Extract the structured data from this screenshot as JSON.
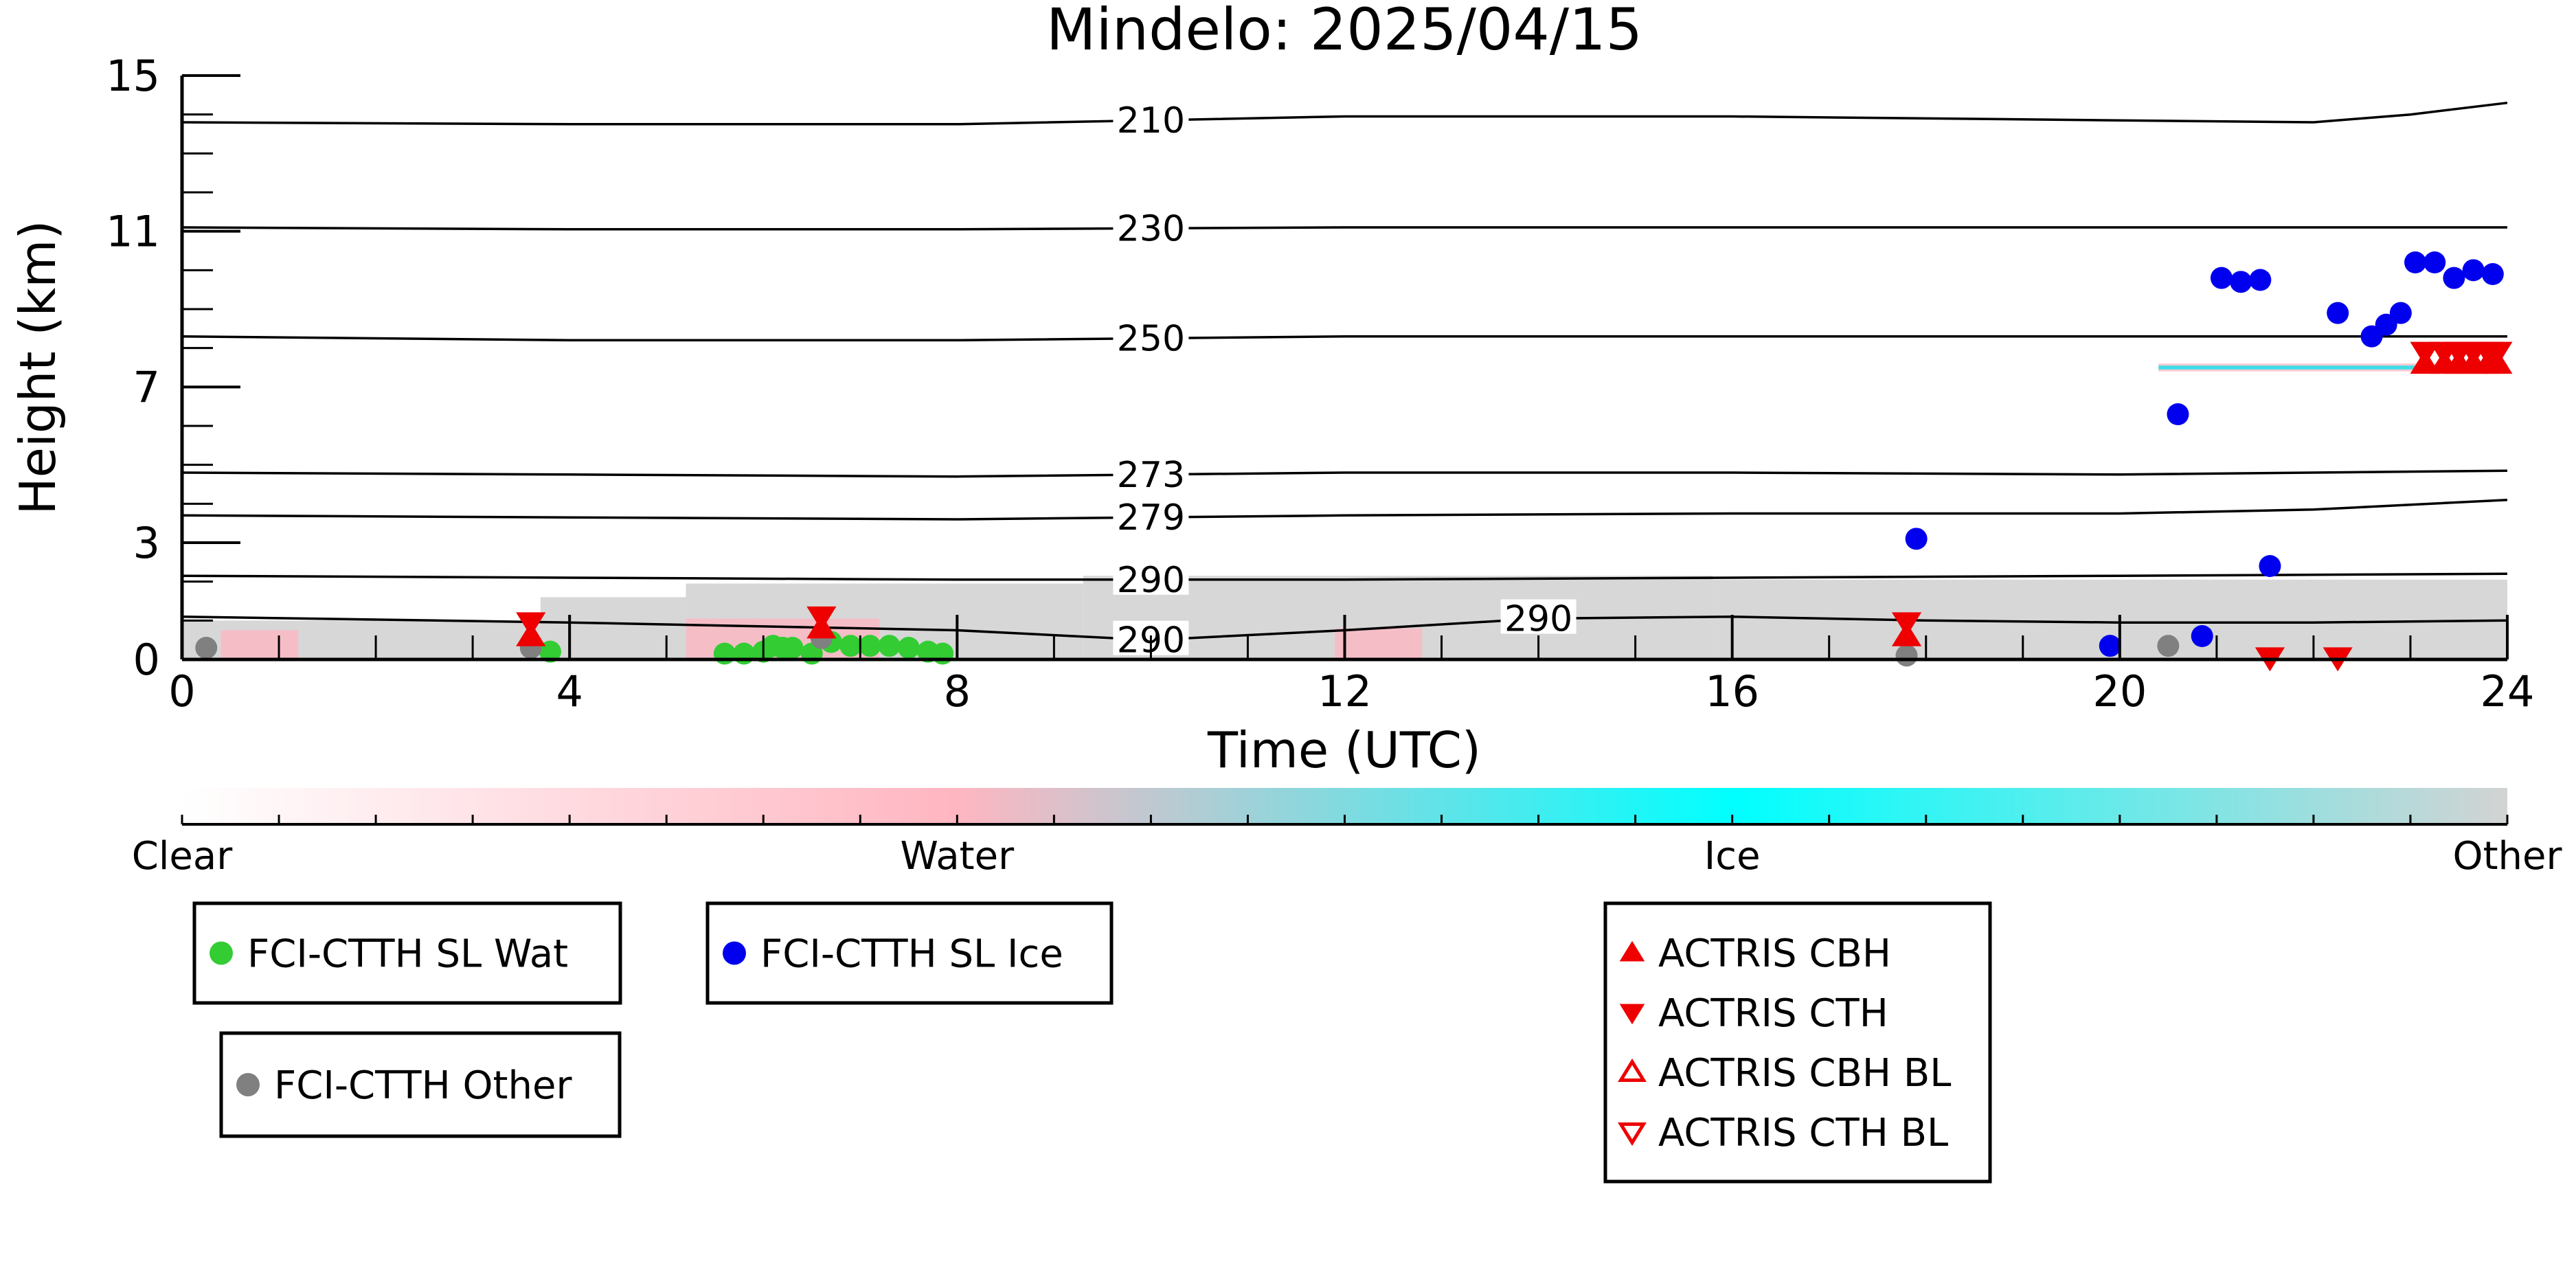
{
  "chart_data": {
    "type": "scatter",
    "title": "Mindelo: 2025/04/15",
    "xlabel": "Time (UTC)",
    "ylabel": "Height (km)",
    "xlim": [
      0,
      24
    ],
    "ylim": [
      0,
      15
    ],
    "xticks": [
      0,
      4,
      8,
      12,
      16,
      20,
      24
    ],
    "yticks": [
      0,
      3,
      7,
      11,
      15
    ],
    "temperature_contours": [
      {
        "label": "210",
        "x": [
          0,
          4,
          8,
          12,
          16,
          20,
          22,
          23,
          24
        ],
        "y": [
          13.8,
          13.75,
          13.75,
          13.95,
          13.95,
          13.85,
          13.8,
          14.0,
          14.3
        ],
        "label_x": 10.0
      },
      {
        "label": "230",
        "x": [
          0,
          4,
          8,
          12,
          16,
          20,
          24
        ],
        "y": [
          11.1,
          11.05,
          11.05,
          11.1,
          11.1,
          11.1,
          11.1
        ],
        "label_x": 10.0
      },
      {
        "label": "250",
        "x": [
          0,
          4,
          8,
          12,
          16,
          20,
          24
        ],
        "y": [
          8.3,
          8.2,
          8.2,
          8.3,
          8.3,
          8.3,
          8.3
        ],
        "label_x": 10.0
      },
      {
        "label": "273",
        "x": [
          0,
          4,
          8,
          12,
          16,
          20,
          24
        ],
        "y": [
          4.8,
          4.75,
          4.7,
          4.8,
          4.8,
          4.75,
          4.85
        ],
        "label_x": 10.0
      },
      {
        "label": "279",
        "x": [
          0,
          4,
          8,
          12,
          16,
          20,
          22,
          24
        ],
        "y": [
          3.7,
          3.65,
          3.6,
          3.7,
          3.75,
          3.75,
          3.85,
          4.1
        ],
        "label_x": 10.0
      },
      {
        "label": "290",
        "x": [
          0,
          4,
          8,
          12,
          16,
          20,
          24
        ],
        "y": [
          2.15,
          2.1,
          2.05,
          2.05,
          2.1,
          2.15,
          2.2
        ],
        "label_x": 10.0
      },
      {
        "label": "290",
        "x": [
          0,
          4,
          8,
          10,
          12,
          14,
          16,
          18,
          20,
          22,
          24
        ],
        "y": [
          1.1,
          0.95,
          0.75,
          0.5,
          0.75,
          1.05,
          1.1,
          1.0,
          0.95,
          0.95,
          1.0
        ],
        "label_x": 10.0,
        "label_x2": 14.0
      }
    ],
    "series": [
      {
        "name": "FCI-CTTH SL Wat",
        "color": "#33cc33",
        "marker": "circle",
        "x": [
          5.6,
          5.8,
          6.0,
          6.1,
          6.2,
          6.3,
          6.5,
          6.7,
          6.9,
          7.1,
          7.3,
          7.5,
          7.7,
          7.85,
          3.8
        ],
        "y": [
          0.15,
          0.15,
          0.2,
          0.35,
          0.3,
          0.3,
          0.15,
          0.45,
          0.35,
          0.35,
          0.35,
          0.3,
          0.2,
          0.15,
          0.2
        ]
      },
      {
        "name": "FCI-CTTH SL Ice",
        "color": "#0000ee",
        "marker": "circle",
        "x": [
          17.9,
          19.9,
          20.6,
          20.85,
          21.05,
          21.25,
          21.45,
          21.55,
          22.25,
          22.6,
          22.75,
          22.9,
          23.05,
          23.25,
          23.45,
          23.65,
          23.85
        ],
        "y": [
          3.1,
          0.35,
          6.3,
          0.6,
          9.8,
          9.7,
          9.75,
          2.4,
          8.9,
          8.3,
          8.6,
          8.9,
          10.2,
          10.2,
          9.8,
          10.0,
          9.9
        ]
      },
      {
        "name": "FCI-CTTH Other",
        "color": "#808080",
        "marker": "circle",
        "x": [
          0.25,
          3.6,
          6.6,
          17.8,
          20.5
        ],
        "y": [
          0.3,
          0.3,
          0.55,
          0.1,
          0.35
        ]
      },
      {
        "name": "ACTRIS CBH",
        "color": "#ee0000",
        "marker": "triangle-up",
        "x": [
          3.6,
          6.6,
          17.8,
          23.15,
          23.35,
          23.5,
          23.65,
          23.8,
          23.9
        ],
        "y": [
          0.6,
          0.8,
          0.6,
          7.6,
          7.6,
          7.6,
          7.6,
          7.6,
          7.6
        ]
      },
      {
        "name": "ACTRIS CTH",
        "color": "#ee0000",
        "marker": "triangle-down",
        "x": [
          3.6,
          6.6,
          17.8,
          21.55,
          22.25,
          23.15,
          23.35,
          23.5,
          23.65,
          23.8,
          23.9
        ],
        "y": [
          0.95,
          1.1,
          0.95,
          0.05,
          0.05,
          7.9,
          7.9,
          7.9,
          7.9,
          7.9,
          7.9
        ]
      },
      {
        "name": "ACTRIS CBH BL",
        "color": "#ee0000",
        "marker": "triangle-up-open",
        "x": [],
        "y": []
      },
      {
        "name": "ACTRIS CTH BL",
        "color": "#ee0000",
        "marker": "triangle-down-open",
        "x": [],
        "y": []
      }
    ],
    "background_classification": [
      {
        "class": "Other",
        "color": "#d3d3d3",
        "x_start": 0.0,
        "x_end": 3.7,
        "y_top": 1.0
      },
      {
        "class": "Other",
        "color": "#d3d3d3",
        "x_start": 3.7,
        "x_end": 5.2,
        "y_top": 1.6
      },
      {
        "class": "Other",
        "color": "#d3d3d3",
        "x_start": 5.2,
        "x_end": 9.3,
        "y_top": 1.95
      },
      {
        "class": "Other",
        "color": "#d3d3d3",
        "x_start": 9.3,
        "x_end": 15.8,
        "y_top": 2.15
      },
      {
        "class": "Other",
        "color": "#d3d3d3",
        "x_start": 15.8,
        "x_end": 24.0,
        "y_top": 2.05
      },
      {
        "class": "Water",
        "color": "#ffb6c1",
        "x_start": 0.4,
        "x_end": 1.2,
        "y_top": 0.75
      },
      {
        "class": "Water",
        "color": "#ffb6c1",
        "x_start": 5.2,
        "x_end": 7.2,
        "y_top": 1.05
      },
      {
        "class": "Water",
        "color": "#ffb6c1",
        "x_start": 11.9,
        "x_end": 12.8,
        "y_top": 0.8
      },
      {
        "class": "Water",
        "color": "#ffb6c1",
        "x_start": 20.4,
        "x_end": 24.0,
        "y_top": 7.6,
        "y_bottom": 7.4
      },
      {
        "class": "Ice",
        "color": "#00e5ee",
        "x_start": 20.4,
        "x_end": 24.0,
        "y_top": 7.55,
        "y_bottom": 7.45
      }
    ],
    "colorbar": {
      "labels": [
        "Clear",
        "Water",
        "Ice",
        "Other"
      ],
      "colors": [
        "#ffffff",
        "#ffb6c1",
        "#00ffff",
        "#d3d3d3"
      ]
    },
    "legend_groups": [
      [
        "FCI-CTTH SL Wat"
      ],
      [
        "FCI-CTTH SL Ice"
      ],
      [
        "FCI-CTTH Other"
      ],
      [
        "ACTRIS CBH",
        "ACTRIS CTH",
        "ACTRIS CBH BL",
        "ACTRIS CTH BL"
      ]
    ]
  }
}
